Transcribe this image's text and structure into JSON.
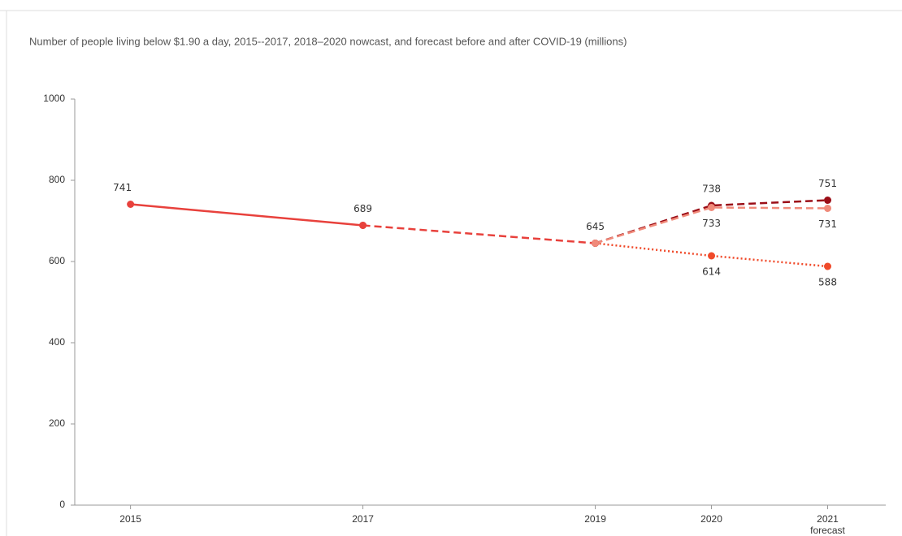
{
  "chart_data": {
    "type": "line",
    "title": "Number of people living below $1.90 a day, 2015--2017, 2018–2020 nowcast, and forecast before and after COVID-19 (millions)",
    "x": [
      2015,
      2017,
      2019,
      2020,
      2021
    ],
    "xticks": [
      2015,
      2017,
      2019,
      2020,
      2021
    ],
    "forecast_label": "forecast",
    "xlim": [
      2014.52,
      2021.5
    ],
    "ylim": [
      0,
      1000
    ],
    "yticks": [
      0,
      200,
      400,
      600,
      800,
      1000
    ],
    "series": [
      {
        "color": "#e8413c",
        "dash": "solid",
        "label_position": "above",
        "values": [
          741,
          689,
          null,
          null,
          null
        ]
      },
      {
        "color": "#e8413c",
        "dash": "dashed",
        "label_position": "above",
        "values": [
          null,
          689,
          645,
          null,
          null
        ]
      },
      {
        "color": "#f04a2a",
        "dash": "dotted",
        "label_position": "below",
        "values": [
          null,
          null,
          645,
          614,
          588
        ]
      },
      {
        "color": "#9b0e17",
        "dash": "dashed",
        "label_position": "above",
        "values": [
          null,
          null,
          645,
          738,
          751
        ]
      },
      {
        "color": "#f08a7a",
        "dash": "dashed",
        "label_position": "below",
        "values": [
          null,
          null,
          645,
          733,
          731
        ]
      }
    ]
  }
}
